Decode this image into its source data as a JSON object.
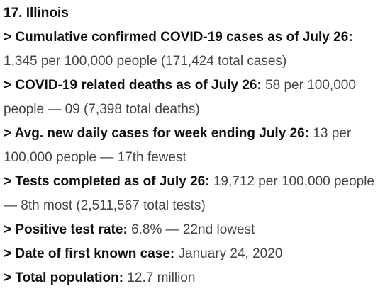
{
  "heading": "17. Illinois",
  "stats": [
    {
      "label": "> Cumulative confirmed COVID-19 cases as of July 26:",
      "value": "1,345 per 100,000 people (171,424 total cases)"
    },
    {
      "label": "> COVID-19 related deaths as of July 26:",
      "value": "58 per 100,000 people — 09 (7,398 total deaths)"
    },
    {
      "label": "> Avg. new daily cases for week ending July 26:",
      "value": "13 per 100,000 people — 17th fewest"
    },
    {
      "label": "> Tests completed as of July 26:",
      "value": "19,712 per 100,000 people — 8th most (2,511,567 total tests)"
    },
    {
      "label": "> Positive test rate:",
      "value": "6.8% — 22nd lowest"
    },
    {
      "label": "> Date of first known case:",
      "value": "January 24, 2020"
    },
    {
      "label": "> Total population:",
      "value": "12.7 million"
    }
  ]
}
